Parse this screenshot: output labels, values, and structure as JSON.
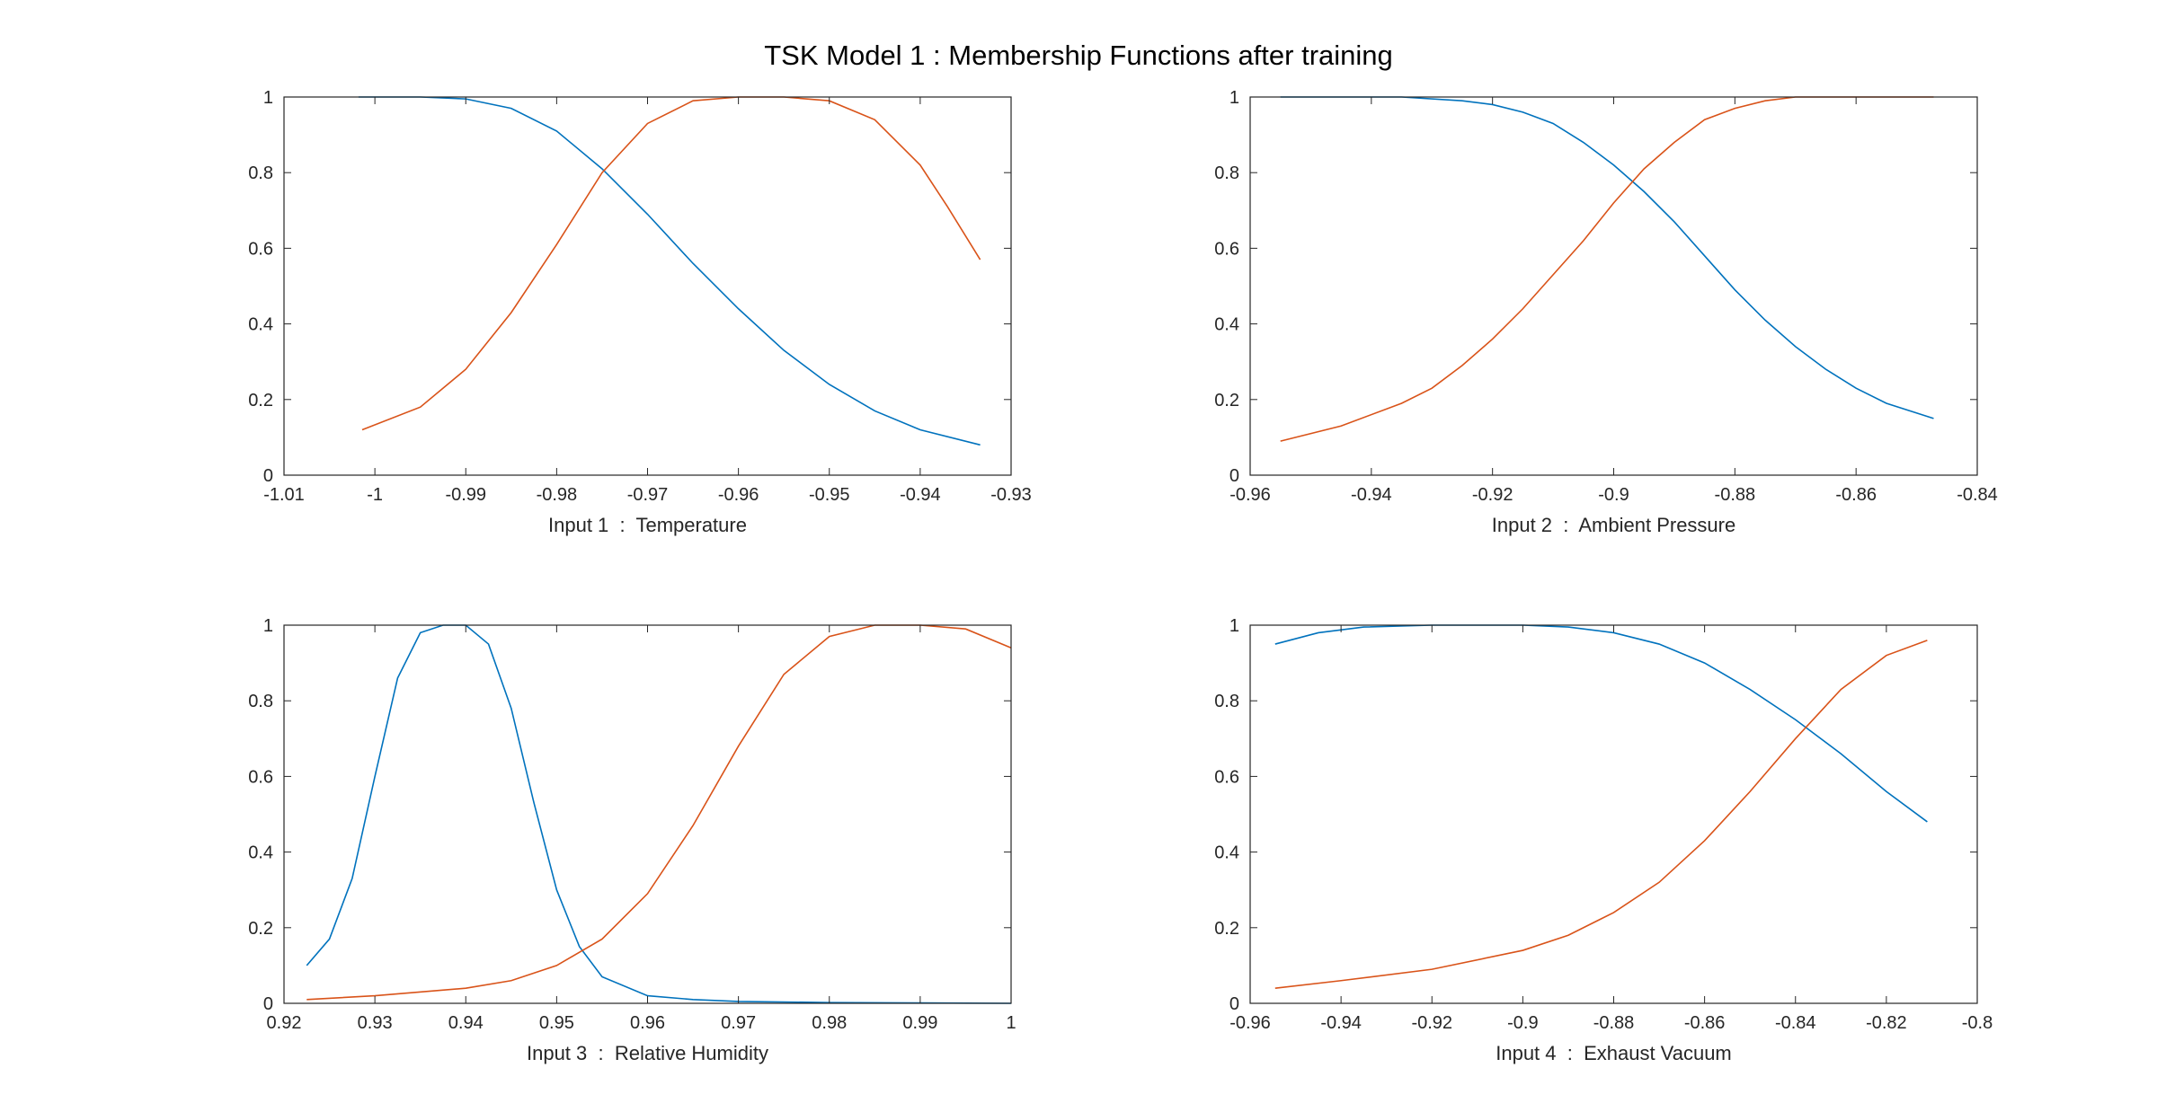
{
  "figure": {
    "title": "TSK Model 1 : Membership Functions after training"
  },
  "colors": {
    "background": "#ffffff",
    "axes": "#262626",
    "series1": "#0072BD",
    "series2": "#D95319"
  },
  "chart_data": [
    {
      "type": "line",
      "xlabel": "Input 1  :  Temperature",
      "xlim": [
        -1.01,
        -0.93
      ],
      "ylim": [
        0,
        1
      ],
      "xticks": [
        -1.01,
        -1,
        -0.99,
        -0.98,
        -0.97,
        -0.96,
        -0.95,
        -0.94,
        -0.93
      ],
      "xtick_labels": [
        "-1.01",
        "-1",
        "-0.99",
        "-0.98",
        "-0.97",
        "-0.96",
        "-0.95",
        "-0.94",
        "-0.93"
      ],
      "yticks": [
        0,
        0.2,
        0.4,
        0.6,
        0.8,
        1
      ],
      "ytick_labels": [
        "0",
        "0.2",
        "0.4",
        "0.6",
        "0.8",
        "1"
      ],
      "grid": false,
      "series": [
        {
          "color": "#0072BD",
          "x": [
            -1.0018,
            -0.995,
            -0.99,
            -0.985,
            -0.98,
            -0.975,
            -0.97,
            -0.965,
            -0.96,
            -0.955,
            -0.95,
            -0.945,
            -0.94,
            -0.9334
          ],
          "y": [
            1.0,
            1.0,
            0.995,
            0.97,
            0.91,
            0.81,
            0.69,
            0.56,
            0.44,
            0.33,
            0.24,
            0.17,
            0.12,
            0.08
          ]
        },
        {
          "color": "#D95319",
          "x": [
            -1.0014,
            -0.995,
            -0.99,
            -0.985,
            -0.98,
            -0.975,
            -0.97,
            -0.965,
            -0.96,
            -0.955,
            -0.95,
            -0.945,
            -0.94,
            -0.937,
            -0.9334
          ],
          "y": [
            0.12,
            0.18,
            0.28,
            0.43,
            0.61,
            0.8,
            0.93,
            0.99,
            1.0,
            1.0,
            0.99,
            0.94,
            0.82,
            0.71,
            0.57
          ]
        }
      ]
    },
    {
      "type": "line",
      "xlabel": "Input 2  :  Ambient Pressure",
      "xlim": [
        -0.96,
        -0.84
      ],
      "ylim": [
        0,
        1
      ],
      "xticks": [
        -0.96,
        -0.94,
        -0.92,
        -0.9,
        -0.88,
        -0.86,
        -0.84
      ],
      "xtick_labels": [
        "-0.96",
        "-0.94",
        "-0.92",
        "-0.9",
        "-0.88",
        "-0.86",
        "-0.84"
      ],
      "yticks": [
        0,
        0.2,
        0.4,
        0.6,
        0.8,
        1
      ],
      "ytick_labels": [
        "0",
        "0.2",
        "0.4",
        "0.6",
        "0.8",
        "1"
      ],
      "grid": false,
      "series": [
        {
          "color": "#0072BD",
          "x": [
            -0.955,
            -0.945,
            -0.935,
            -0.925,
            -0.92,
            -0.915,
            -0.91,
            -0.905,
            -0.9,
            -0.895,
            -0.89,
            -0.885,
            -0.88,
            -0.875,
            -0.87,
            -0.865,
            -0.86,
            -0.855,
            -0.8472
          ],
          "y": [
            1.0,
            1.0,
            1.0,
            0.99,
            0.98,
            0.96,
            0.93,
            0.88,
            0.82,
            0.75,
            0.67,
            0.58,
            0.49,
            0.41,
            0.34,
            0.28,
            0.23,
            0.19,
            0.15
          ]
        },
        {
          "color": "#D95319",
          "x": [
            -0.955,
            -0.945,
            -0.935,
            -0.93,
            -0.925,
            -0.92,
            -0.915,
            -0.91,
            -0.905,
            -0.9,
            -0.895,
            -0.89,
            -0.885,
            -0.88,
            -0.875,
            -0.87,
            -0.865,
            -0.86,
            -0.8472
          ],
          "y": [
            0.09,
            0.13,
            0.19,
            0.23,
            0.29,
            0.36,
            0.44,
            0.53,
            0.62,
            0.72,
            0.81,
            0.88,
            0.94,
            0.97,
            0.99,
            1.0,
            1.0,
            1.0,
            1.0
          ]
        }
      ]
    },
    {
      "type": "line",
      "xlabel": "Input 3  :  Relative Humidity",
      "xlim": [
        0.92,
        1
      ],
      "ylim": [
        0,
        1
      ],
      "xticks": [
        0.92,
        0.93,
        0.94,
        0.95,
        0.96,
        0.97,
        0.98,
        0.99,
        1
      ],
      "xtick_labels": [
        "0.92",
        "0.93",
        "0.94",
        "0.95",
        "0.96",
        "0.97",
        "0.98",
        "0.99",
        "1"
      ],
      "yticks": [
        0,
        0.2,
        0.4,
        0.6,
        0.8,
        1
      ],
      "ytick_labels": [
        "0",
        "0.2",
        "0.4",
        "0.6",
        "0.8",
        "1"
      ],
      "grid": false,
      "series": [
        {
          "color": "#0072BD",
          "x": [
            0.9225,
            0.925,
            0.9275,
            0.93,
            0.9325,
            0.935,
            0.9375,
            0.94,
            0.9425,
            0.945,
            0.9475,
            0.95,
            0.9525,
            0.955,
            0.96,
            0.965,
            0.97,
            0.98,
            0.99,
            1.0
          ],
          "y": [
            0.1,
            0.17,
            0.33,
            0.6,
            0.86,
            0.98,
            1.0,
            1.0,
            0.95,
            0.78,
            0.53,
            0.3,
            0.15,
            0.07,
            0.02,
            0.01,
            0.005,
            0.002,
            0.001,
            0.0
          ]
        },
        {
          "color": "#D95319",
          "x": [
            0.9225,
            0.93,
            0.94,
            0.945,
            0.95,
            0.955,
            0.96,
            0.965,
            0.97,
            0.975,
            0.98,
            0.985,
            0.99,
            0.995,
            1.0
          ],
          "y": [
            0.01,
            0.02,
            0.04,
            0.06,
            0.1,
            0.17,
            0.29,
            0.47,
            0.68,
            0.87,
            0.97,
            1.0,
            1.0,
            0.99,
            0.94
          ]
        }
      ]
    },
    {
      "type": "line",
      "xlabel": "Input 4  :  Exhaust Vacuum",
      "xlim": [
        -0.96,
        -0.8
      ],
      "ylim": [
        0,
        1
      ],
      "xticks": [
        -0.96,
        -0.94,
        -0.92,
        -0.9,
        -0.88,
        -0.86,
        -0.84,
        -0.82,
        -0.8
      ],
      "xtick_labels": [
        "-0.96",
        "-0.94",
        "-0.92",
        "-0.9",
        "-0.88",
        "-0.86",
        "-0.84",
        "-0.82",
        "-0.8"
      ],
      "yticks": [
        0,
        0.2,
        0.4,
        0.6,
        0.8,
        1
      ],
      "ytick_labels": [
        "0",
        "0.2",
        "0.4",
        "0.6",
        "0.8",
        "1"
      ],
      "grid": false,
      "series": [
        {
          "color": "#0072BD",
          "x": [
            -0.9545,
            -0.945,
            -0.935,
            -0.92,
            -0.9,
            -0.89,
            -0.88,
            -0.87,
            -0.86,
            -0.85,
            -0.84,
            -0.83,
            -0.82,
            -0.811
          ],
          "y": [
            0.95,
            0.98,
            0.995,
            1.0,
            1.0,
            0.995,
            0.98,
            0.95,
            0.9,
            0.83,
            0.75,
            0.66,
            0.56,
            0.48
          ]
        },
        {
          "color": "#D95319",
          "x": [
            -0.9545,
            -0.94,
            -0.92,
            -0.9,
            -0.89,
            -0.88,
            -0.87,
            -0.86,
            -0.85,
            -0.84,
            -0.83,
            -0.82,
            -0.811
          ],
          "y": [
            0.04,
            0.06,
            0.09,
            0.14,
            0.18,
            0.24,
            0.32,
            0.43,
            0.56,
            0.7,
            0.83,
            0.92,
            0.96
          ]
        }
      ]
    }
  ]
}
